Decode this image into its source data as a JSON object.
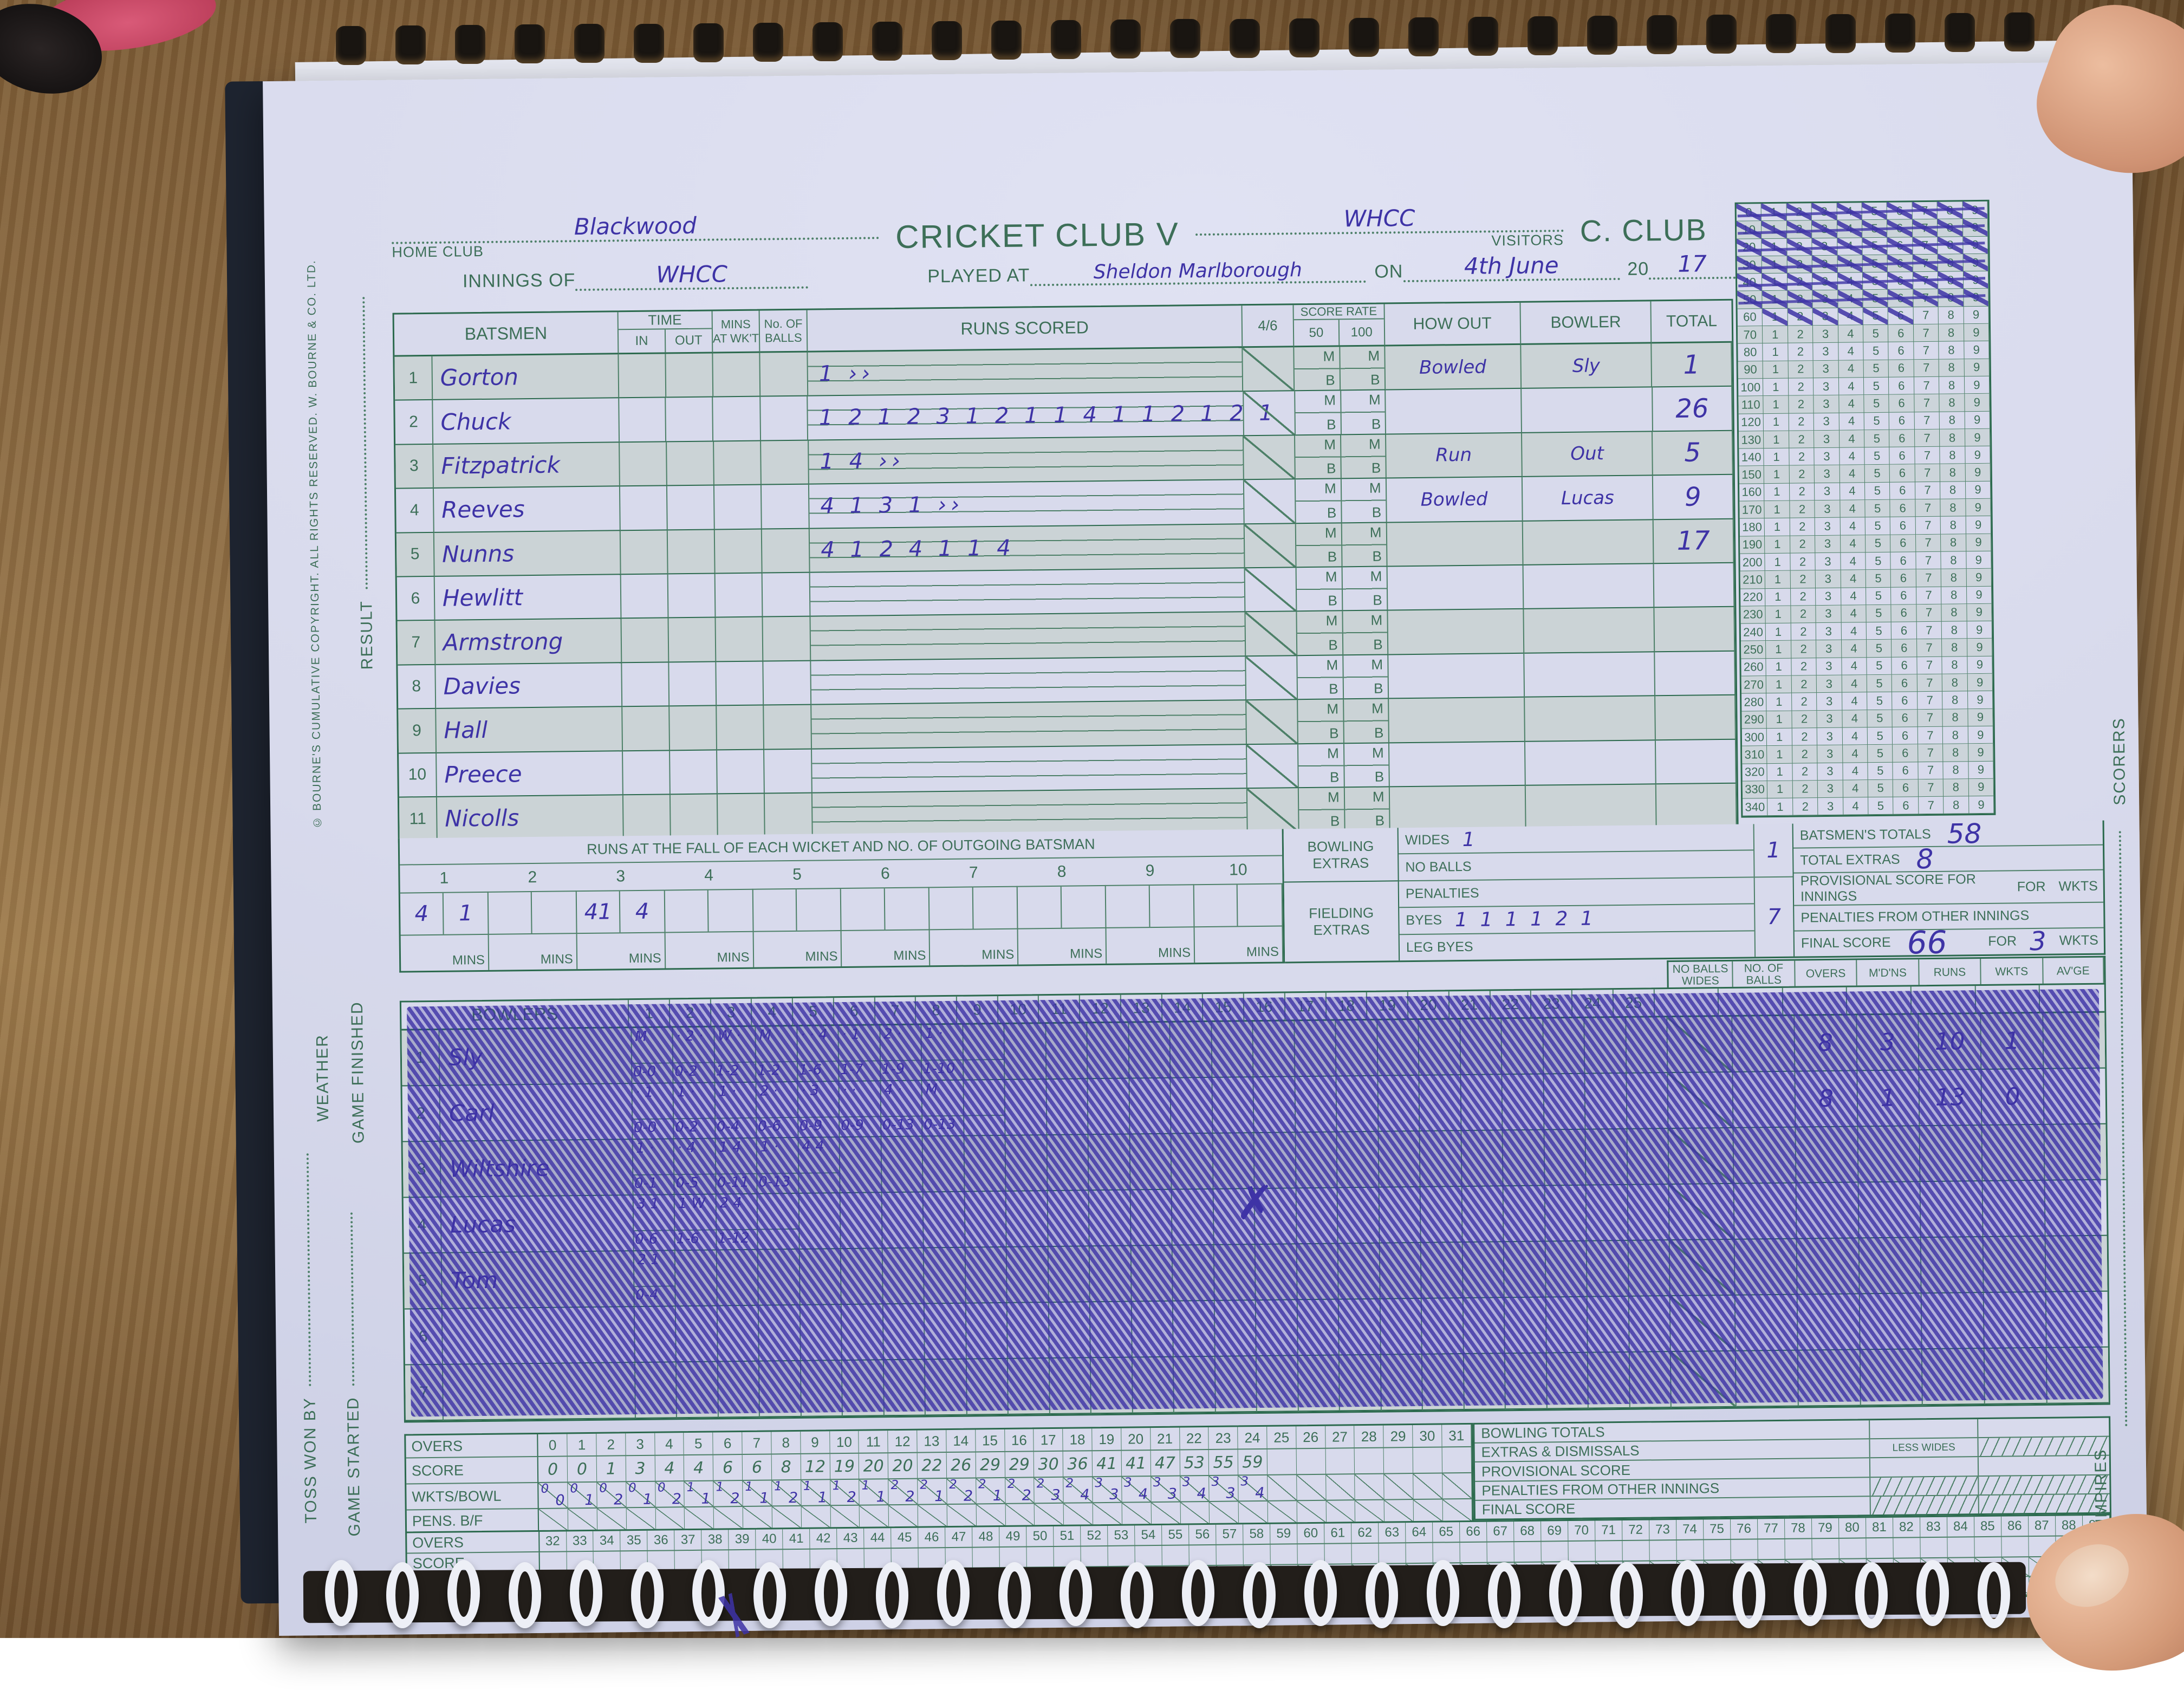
{
  "header": {
    "home_club_value": "Blackwood",
    "home_club_label": "HOME CLUB",
    "title_mid": "CRICKET CLUB V",
    "visitors_value": "WHCC",
    "visitors_label": "VISITORS",
    "club_right": "C. CLUB",
    "innings_of_label": "INNINGS OF",
    "innings_of_value": "WHCC",
    "played_at_label": "PLAYED AT",
    "played_at_value": "Sheldon Marlborough",
    "on_label": "ON",
    "date_value": "4th June",
    "year_prefix": "20",
    "year_value": "17"
  },
  "batsmen": {
    "headers": {
      "batsmen": "BATSMEN",
      "time": "TIME",
      "in": "IN",
      "out": "OUT",
      "mins_at_wkt": "MINS AT WK'T",
      "no_of_balls": "No. OF BALLS",
      "runs_scored": "RUNS SCORED",
      "four_six": "4/6",
      "score_rate": "SCORE RATE",
      "r50": "50",
      "r100": "100",
      "how_out": "HOW OUT",
      "bowler": "BOWLER",
      "total": "TOTAL",
      "m": "M",
      "b": "B"
    },
    "rows": [
      {
        "no": "1",
        "name": "Gorton",
        "runs": "1    ››",
        "how_out": "Bowled",
        "bowler": "Sly",
        "total": "1"
      },
      {
        "no": "2",
        "name": "Chuck",
        "runs": "1 2 1 2 3 1 2 1 1 4 1 1 2 1 2 1",
        "how_out": "",
        "bowler": "",
        "total": "26"
      },
      {
        "no": "3",
        "name": "Fitzpatrick",
        "runs": "1 4  ››",
        "how_out": "Run",
        "bowler": "Out",
        "total": "5"
      },
      {
        "no": "4",
        "name": "Reeves",
        "runs": "4 1 3 1 ››",
        "how_out": "Bowled",
        "bowler": "Lucas",
        "total": "9"
      },
      {
        "no": "5",
        "name": "Nunns",
        "runs": "4 1 2 4 1 1 4",
        "how_out": "",
        "bowler": "",
        "total": "17"
      },
      {
        "no": "6",
        "name": "Hewlitt",
        "runs": "",
        "how_out": "",
        "bowler": "",
        "total": ""
      },
      {
        "no": "7",
        "name": "Armstrong",
        "runs": "",
        "how_out": "",
        "bowler": "",
        "total": ""
      },
      {
        "no": "8",
        "name": "Davies",
        "runs": "",
        "how_out": "",
        "bowler": "",
        "total": ""
      },
      {
        "no": "9",
        "name": "Hall",
        "runs": "",
        "how_out": "",
        "bowler": "",
        "total": ""
      },
      {
        "no": "10",
        "name": "Preece",
        "runs": "",
        "how_out": "",
        "bowler": "",
        "total": ""
      },
      {
        "no": "11",
        "name": "Nicolls",
        "runs": "",
        "how_out": "",
        "bowler": "",
        "total": ""
      }
    ]
  },
  "tally": {
    "row_labels": [
      "0",
      "10",
      "20",
      "30",
      "40",
      "50",
      "60",
      "70",
      "80",
      "90",
      "100",
      "110",
      "120",
      "130",
      "140",
      "150",
      "160",
      "170",
      "180",
      "190",
      "200",
      "210",
      "220",
      "230",
      "240",
      "250",
      "260",
      "270",
      "280",
      "290",
      "300",
      "310",
      "320",
      "330",
      "340"
    ],
    "fully_crossed_rows": 6,
    "partial_row": {
      "index": 6,
      "crossed_upto": 6
    }
  },
  "fow": {
    "title": "RUNS AT THE FALL OF EACH WICKET AND NO. OF OUTGOING BATSMAN",
    "numbers": [
      "1",
      "2",
      "3",
      "4",
      "5",
      "6",
      "7",
      "8",
      "9",
      "10"
    ],
    "mins": "MINS",
    "values": [
      [
        "4",
        "1"
      ],
      [
        "",
        ""
      ],
      [
        "41",
        "4"
      ],
      [
        "",
        ""
      ],
      [
        "",
        ""
      ],
      [
        "",
        ""
      ],
      [
        "",
        ""
      ],
      [
        "",
        ""
      ],
      [
        "",
        ""
      ],
      [
        "",
        ""
      ]
    ]
  },
  "extras": {
    "bowling_group": "BOWLING EXTRAS",
    "fielding_group": "FIELDING EXTRAS",
    "wides_label": "WIDES",
    "wides_marks": "1",
    "no_balls_label": "NO BALLS",
    "penalties_label": "PENALTIES",
    "byes_label": "BYES",
    "byes_marks": "1 1 1 1 2 1",
    "leg_byes_label": "LEG BYES",
    "bowling_total": "1",
    "fielding_total": "7"
  },
  "totals": {
    "batsmens_totals_label": "BATSMEN'S TOTALS",
    "batsmens_totals": "58",
    "total_extras_label": "TOTAL EXTRAS",
    "total_extras": "8",
    "provisional_label": "PROVISIONAL SCORE FOR INNINGS",
    "penalties_other_label": "PENALTIES FROM OTHER INNINGS",
    "final_label": "FINAL SCORE",
    "final_score": "66",
    "for": "FOR",
    "wkts": "WKTS",
    "final_wkts": "3"
  },
  "bowlers": {
    "title": "BOWLERS",
    "over_numbers": [
      "1",
      "2",
      "3",
      "4",
      "5",
      "6",
      "7",
      "8",
      "9",
      "10",
      "11",
      "12",
      "13",
      "14",
      "15",
      "16",
      "17",
      "18",
      "19",
      "20",
      "21",
      "22",
      "23",
      "24",
      "25"
    ],
    "right_headers": [
      [
        "NO BALLS",
        "WIDES"
      ],
      [
        "NO. OF",
        "BALLS"
      ],
      [
        "OVERS"
      ],
      [
        "M'D'NS"
      ],
      [
        "RUNS"
      ],
      [
        "WKTS"
      ],
      [
        "AV'GE"
      ]
    ],
    "rows": [
      {
        "no": "1",
        "name": "Sly",
        "overs": [
          {
            "m": "M",
            "f": "0-0"
          },
          {
            "m": "· 2 ·",
            "f": "0-2"
          },
          {
            "m": "W ·",
            "f": "1-2"
          },
          {
            "m": "M",
            "f": "1-2"
          },
          {
            "m": "· · 4",
            "f": "1-6"
          },
          {
            "m": "· 1",
            "f": "1-7"
          },
          {
            "m": "2 ·",
            "f": "1-9"
          },
          {
            "m": "1 ·",
            "f": "1-10"
          },
          {
            "m": "",
            "f": "",
            "cross": true
          }
        ],
        "totals": {
          "overs": "8",
          "mdns": "3",
          "runs": "10",
          "wkts": "1",
          "avge": ""
        }
      },
      {
        "no": "2",
        "name": "Carl",
        "overs": [
          {
            "m": "· 1",
            "f": "0-0"
          },
          {
            "m": "1 ·",
            "f": "0-2"
          },
          {
            "m": "1 ·",
            "f": "0-4"
          },
          {
            "m": "2 ·",
            "f": "0-6"
          },
          {
            "m": "· 3",
            "f": "0-9"
          },
          {
            "m": "· ·",
            "f": "0-9"
          },
          {
            "m": "4 ·",
            "f": "0-13"
          },
          {
            "m": "M",
            "f": "0-13"
          },
          {
            "m": "",
            "f": "",
            "cross": true
          }
        ],
        "totals": {
          "overs": "8",
          "mdns": "1",
          "runs": "13",
          "wkts": "0",
          "avge": ""
        }
      },
      {
        "no": "3",
        "name": "Wiltshire",
        "overs": [
          {
            "m": "1 ·",
            "f": "0-1"
          },
          {
            "m": "· 4",
            "f": "0-5"
          },
          {
            "m": "1 4",
            "f": "0-11"
          },
          {
            "m": "1 ·",
            "f": "0-13"
          },
          {
            "m": "4 4",
            "f": ""
          }
        ],
        "totals": {
          "overs": "",
          "mdns": "",
          "runs": "",
          "wkts": "",
          "avge": ""
        }
      },
      {
        "no": "4",
        "name": "Lucas",
        "overs": [
          {
            "m": "3 1",
            "f": "0-6"
          },
          {
            "m": "1 W",
            "f": "1-6"
          },
          {
            "m": "2 4",
            "f": "1-12"
          },
          {
            "m": "",
            "f": "",
            "scribble": true
          }
        ],
        "totals": {
          "overs": "",
          "mdns": "",
          "runs": "",
          "wkts": "",
          "avge": ""
        }
      },
      {
        "no": "5",
        "name": "Tom",
        "overs": [
          {
            "m": "2 1",
            "f": "0-4"
          }
        ],
        "totals": {
          "overs": "",
          "mdns": "",
          "runs": "",
          "wkts": "",
          "avge": ""
        }
      },
      {
        "no": "6",
        "name": "",
        "overs": [],
        "totals": {
          "overs": "",
          "mdns": "",
          "runs": "",
          "wkts": "",
          "avge": ""
        }
      },
      {
        "no": "7",
        "name": "",
        "overs": [],
        "totals": {
          "overs": "",
          "mdns": "",
          "runs": "",
          "wkts": "",
          "avge": ""
        }
      }
    ]
  },
  "bottom": {
    "row_labels": {
      "overs": "OVERS",
      "score": "SCORE",
      "wkts_bowl": "WKTS/BOWL",
      "pens": "PENS. B/F"
    },
    "overs1": [
      "0",
      "1",
      "2",
      "3",
      "4",
      "5",
      "6",
      "7",
      "8",
      "9",
      "10",
      "11",
      "12",
      "13",
      "14",
      "15",
      "16",
      "17",
      "18",
      "19",
      "20",
      "21",
      "22",
      "23",
      "24",
      "25",
      "26",
      "27",
      "28",
      "29",
      "30",
      "31"
    ],
    "scores": [
      "0",
      "0",
      "1",
      "3",
      "4",
      "4",
      "6",
      "6",
      "8",
      "12",
      "19",
      "20",
      "20",
      "22",
      "26",
      "29",
      "29",
      "30",
      "36",
      "41",
      "41",
      "47",
      "53",
      "55",
      "59",
      "",
      "",
      "",
      "",
      "",
      "",
      ""
    ],
    "wkts_bowl": [
      [
        "0",
        "0"
      ],
      [
        "0",
        "1"
      ],
      [
        "0",
        "2"
      ],
      [
        "0",
        "1"
      ],
      [
        "0",
        "2"
      ],
      [
        "1",
        "1"
      ],
      [
        "1",
        "2"
      ],
      [
        "1",
        "1"
      ],
      [
        "1",
        "2"
      ],
      [
        "1",
        "1"
      ],
      [
        "1",
        "2"
      ],
      [
        "1",
        "1"
      ],
      [
        "2",
        "2"
      ],
      [
        "2",
        "1"
      ],
      [
        "2",
        "2"
      ],
      [
        "2",
        "1"
      ],
      [
        "2",
        "2"
      ],
      [
        "2",
        "3"
      ],
      [
        "2",
        "4"
      ],
      [
        "3",
        "3"
      ],
      [
        "3",
        "4"
      ],
      [
        "3",
        "3"
      ],
      [
        "3",
        "4"
      ],
      [
        "3",
        "3"
      ],
      [
        "3",
        "4"
      ],
      null,
      null,
      null,
      null,
      null,
      null,
      null
    ],
    "overs2": [
      "32",
      "33",
      "34",
      "35",
      "36",
      "37",
      "38",
      "39",
      "40",
      "41",
      "42",
      "43",
      "44",
      "45",
      "46",
      "47",
      "48",
      "49",
      "50",
      "51",
      "52",
      "53",
      "54",
      "55",
      "56",
      "57",
      "58",
      "59",
      "60",
      "61",
      "62",
      "63",
      "64",
      "65",
      "66",
      "67",
      "68",
      "69",
      "70",
      "71",
      "72",
      "73",
      "74",
      "75",
      "76",
      "77",
      "78",
      "79",
      "80",
      "81",
      "82",
      "83",
      "84",
      "85",
      "86",
      "87",
      "88",
      "89"
    ],
    "right_rows": [
      {
        "label": "BOWLING TOTALS",
        "mid": "",
        "hatch": ""
      },
      {
        "label": "EXTRAS & DISMISSALS",
        "mid": "LESS WIDES",
        "hatch": "val"
      },
      {
        "label": "PROVISIONAL SCORE",
        "mid": "",
        "hatch": ""
      },
      {
        "label": "PENALTIES FROM OTHER INNINGS",
        "mid": "",
        "hatch": "both"
      },
      {
        "label": "FINAL SCORE",
        "mid": "",
        "hatch": "both"
      }
    ]
  },
  "margins": {
    "copyright": "© BOURNE'S CUMULATIVE COPYRIGHT. ALL RIGHTS RESERVED. W. BOURNE & CO. LTD.",
    "result": "RESULT",
    "weather": "WEATHER",
    "game_finished": "GAME FINISHED",
    "toss_won_by": "TOSS WON BY",
    "game_started": "GAME STARTED",
    "scorers": "SCORERS",
    "umpires": "UMPIRES"
  }
}
